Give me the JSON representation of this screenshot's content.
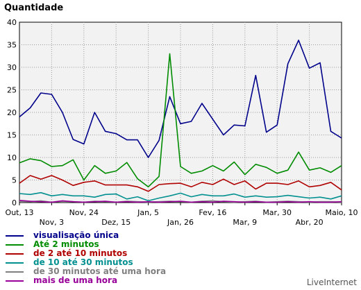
{
  "chart_data": {
    "type": "line",
    "title": "Quantidade",
    "ylim": [
      0,
      40
    ],
    "yticks": [
      0,
      5,
      10,
      15,
      20,
      25,
      30,
      35,
      40
    ],
    "grid": true,
    "x_points": 36,
    "x_tick_labels": [
      {
        "index": 0,
        "label": "Out, 13",
        "row": 1
      },
      {
        "index": 4,
        "label": "Nov, 3",
        "row": 2
      },
      {
        "index": 8,
        "label": "Nov, 24",
        "row": 1
      },
      {
        "index": 12,
        "label": "Dez, 15",
        "row": 2
      },
      {
        "index": 16,
        "label": "Jan, 5",
        "row": 1
      },
      {
        "index": 20,
        "label": "Jan, 26",
        "row": 2
      },
      {
        "index": 24,
        "label": "Fev, 16",
        "row": 1
      },
      {
        "index": 28,
        "label": "Mar, 9",
        "row": 2
      },
      {
        "index": 32,
        "label": "Mar, 30",
        "row": 1
      },
      {
        "index": 36,
        "label": "Abr, 20",
        "row": 2
      },
      {
        "index": 40,
        "label": "Maio, 10",
        "row": 1
      }
    ],
    "series": [
      {
        "name": "visualisação única",
        "color": "#00008b",
        "values": [
          19,
          21,
          24.3,
          24,
          20,
          14,
          13,
          20,
          15.8,
          15.3,
          13.9,
          13.9,
          10,
          13.8,
          23.5,
          17.5,
          18,
          22,
          18.5,
          15,
          17.2,
          17,
          28.2,
          15.6,
          17.2,
          30.8,
          36,
          29.8,
          31,
          15.8,
          14.3
        ]
      },
      {
        "name": "Até 2 minutos",
        "color": "#008c00",
        "values": [
          8.8,
          9.7,
          9.3,
          8,
          8.2,
          9.5,
          5,
          8.2,
          6.5,
          7,
          8.9,
          5.3,
          3.5,
          5.8,
          33,
          8,
          6.5,
          7,
          8.2,
          7,
          9,
          6.2,
          8.5,
          7.8,
          6.5,
          7.2,
          11.2,
          7.2,
          7.7,
          6.7,
          8.2
        ]
      },
      {
        "name": "de 2 até 10 minutos",
        "color": "#b00000",
        "values": [
          4.3,
          6,
          5.2,
          6,
          5,
          3.8,
          4.5,
          4.8,
          3.9,
          3.9,
          3.9,
          3.5,
          2.5,
          4,
          4.2,
          4.3,
          3.5,
          4.5,
          4,
          5.2,
          4,
          4.8,
          3,
          4.3,
          4.3,
          4,
          4.8,
          3.5,
          3.8,
          4.5,
          2.8
        ]
      },
      {
        "name": "de 10 até 30 minutos",
        "color": "#009090",
        "values": [
          2,
          1.8,
          2.2,
          1.5,
          1.8,
          1.5,
          1.5,
          1.2,
          1.8,
          1.9,
          0.8,
          1.3,
          0.4,
          1,
          1.5,
          2.1,
          1.3,
          1.8,
          1.5,
          1.5,
          1.9,
          1.2,
          1.5,
          1.2,
          1.3,
          1.6,
          1.3,
          1,
          1.2,
          0.8,
          1.5
        ]
      },
      {
        "name": "de 30 minutos até uma hora",
        "color": "#808080",
        "values": [
          0.3,
          0.2,
          0.4,
          0.1,
          0.3,
          0.2,
          0.1,
          0.3,
          0.2,
          0.1,
          0.3,
          0.2,
          0.1,
          0.2,
          0.3,
          0.2,
          0.1,
          0.3,
          0.4,
          0.2,
          0.1,
          0.2,
          0.3,
          0.1,
          0.2,
          0.3,
          0.2,
          0.1,
          0.2,
          0.2,
          0.1
        ]
      },
      {
        "name": "mais de uma hora",
        "color": "#990099",
        "values": [
          0.5,
          0.3,
          0.2,
          0.1,
          0.4,
          0.2,
          0.1,
          0.2,
          0.3,
          0.1,
          0.2,
          0.1,
          0.2,
          0.1,
          0.2,
          0.3,
          0.1,
          0.2,
          0.1,
          0.3,
          0.2,
          0.1,
          0.2,
          0.1,
          0.1,
          0.2,
          0.1,
          0.2,
          0.1,
          0.1,
          0.2
        ]
      }
    ]
  },
  "footer": {
    "brand": "LiveInternet"
  }
}
